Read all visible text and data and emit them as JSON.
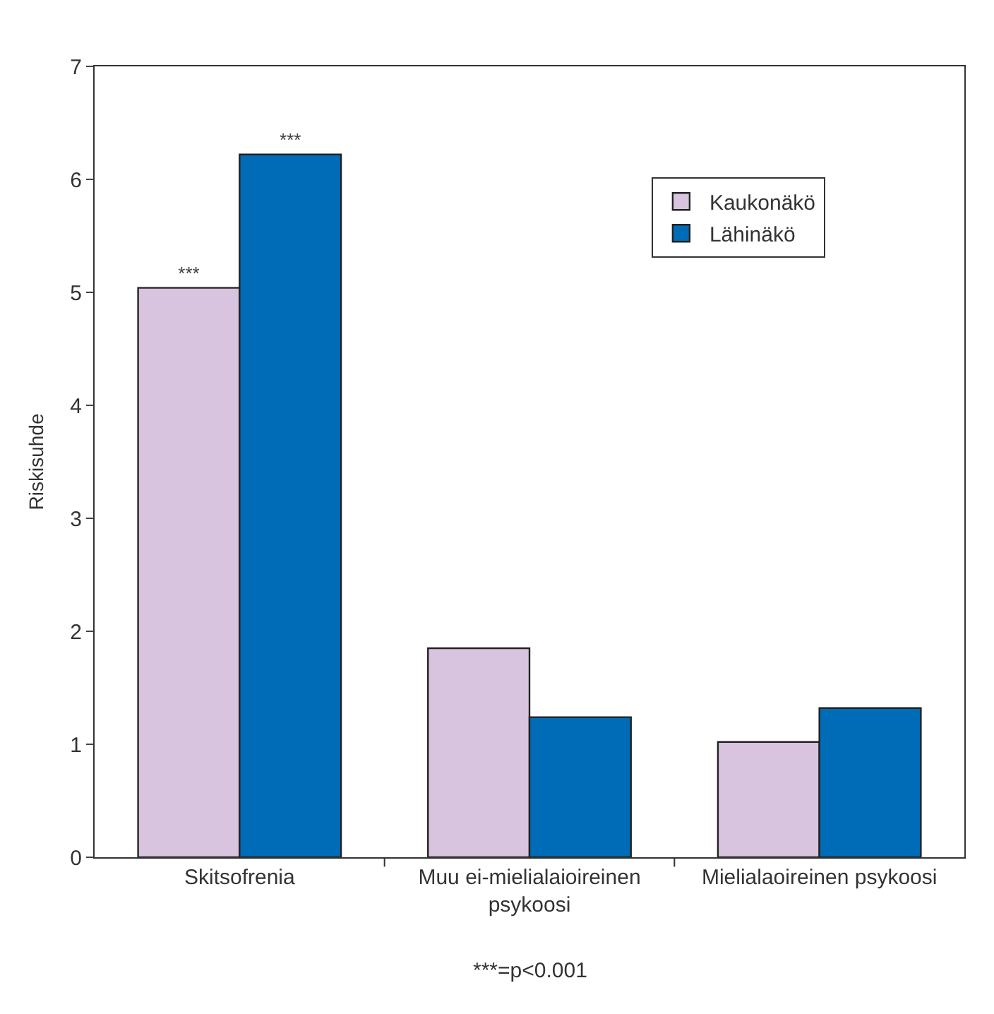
{
  "chart_data": {
    "type": "bar",
    "ylabel": "Riskisuhde",
    "categories": [
      "Skitsofrenia",
      "Muu ei-mielialaioireinen psykoosi",
      "Mielialaoireinen psykoosi"
    ],
    "series": [
      {
        "name": "Kaukonäkö",
        "color": "#d8c4de",
        "values": [
          5.04,
          1.85,
          1.02
        ],
        "value_labels": [
          "***",
          null,
          null
        ]
      },
      {
        "name": "Lähinäkö",
        "color": "#006bb6",
        "values": [
          6.22,
          1.24,
          1.32
        ],
        "value_labels": [
          "***",
          null,
          null
        ]
      }
    ],
    "ylim": [
      0,
      7
    ],
    "yticks": [
      0,
      1,
      2,
      3,
      4,
      5,
      6,
      7
    ],
    "legend": "top right",
    "annotations": [
      "***=p<0.001"
    ]
  }
}
